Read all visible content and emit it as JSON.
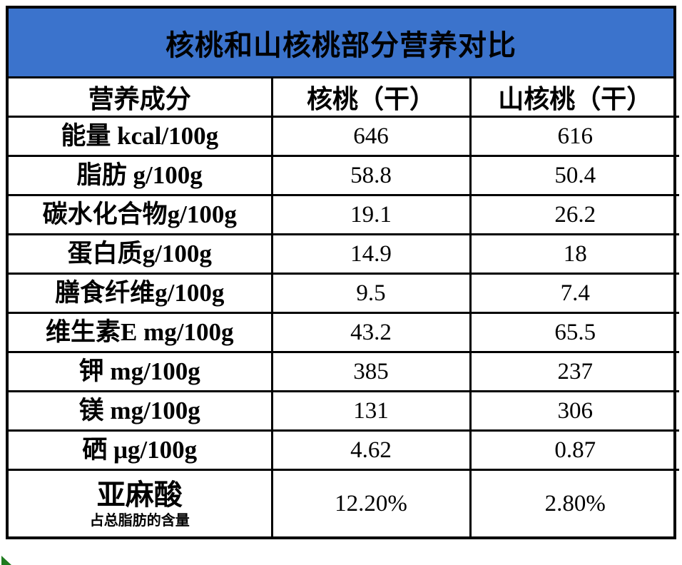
{
  "title": "核桃和山核桃部分营养对比",
  "table": {
    "headers": [
      "营养成分",
      "核桃（干）",
      "山核桃（干）"
    ],
    "rows": [
      {
        "label": "能量 kcal/100g",
        "values": [
          "646",
          "616"
        ]
      },
      {
        "label": "脂肪 g/100g",
        "values": [
          "58.8",
          "50.4"
        ]
      },
      {
        "label": "碳水化合物g/100g",
        "values": [
          "19.1",
          "26.2"
        ]
      },
      {
        "label": "蛋白质g/100g",
        "values": [
          "14.9",
          "18"
        ]
      },
      {
        "label": "膳食纤维g/100g",
        "values": [
          "9.5",
          "7.4"
        ]
      },
      {
        "label": "维生素E mg/100g",
        "values": [
          "43.2",
          "65.5"
        ]
      },
      {
        "label": "钾 mg/100g",
        "values": [
          "385",
          "237"
        ]
      },
      {
        "label": "镁 mg/100g",
        "values": [
          "131",
          "306"
        ]
      },
      {
        "label": "硒 μg/100g",
        "values": [
          "4.62",
          "0.87"
        ]
      },
      {
        "label": "亚麻酸",
        "sublabel": "占总脂肪的含量",
        "values": [
          "12.20%",
          "2.80%"
        ]
      }
    ]
  },
  "chart_data": {
    "type": "table",
    "title": "核桃和山核桃部分营养对比",
    "columns": [
      "营养成分",
      "核桃（干）",
      "山核桃（干）"
    ],
    "categories": [
      "能量 kcal/100g",
      "脂肪 g/100g",
      "碳水化合物g/100g",
      "蛋白质g/100g",
      "膳食纤维g/100g",
      "维生素E mg/100g",
      "钾 mg/100g",
      "镁 mg/100g",
      "硒 μg/100g",
      "亚麻酸 占总脂肪的含量"
    ],
    "series": [
      {
        "name": "核桃（干）",
        "values": [
          646,
          58.8,
          19.1,
          14.9,
          9.5,
          43.2,
          385,
          131,
          4.62,
          "12.20%"
        ]
      },
      {
        "name": "山核桃（干）",
        "values": [
          616,
          50.4,
          26.2,
          18,
          7.4,
          65.5,
          237,
          306,
          0.87,
          "2.80%"
        ]
      }
    ]
  },
  "colors": {
    "title_bar_blue": "#3B73CC",
    "border_black": "#000000",
    "corner_mark_green": "#1E7B1E"
  }
}
